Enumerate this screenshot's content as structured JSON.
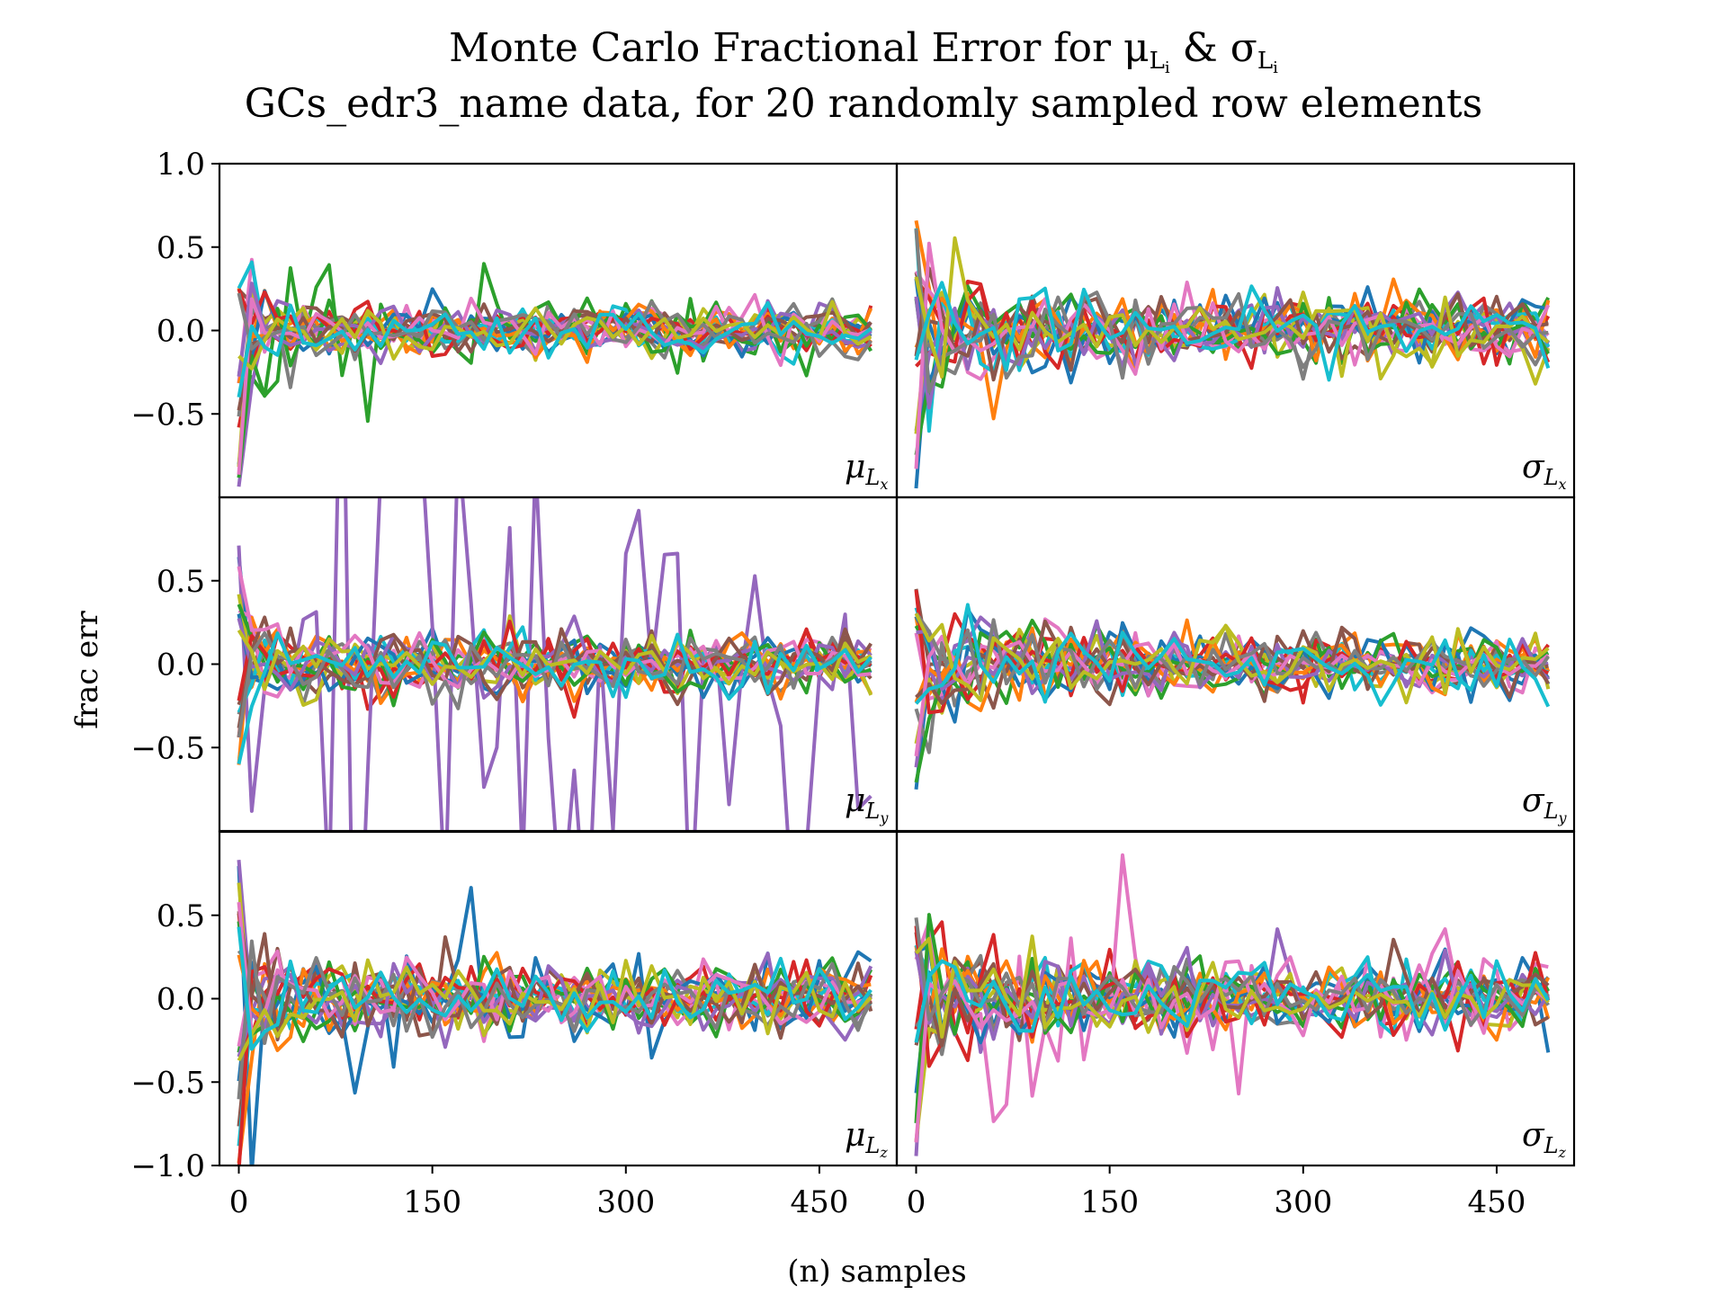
{
  "chart_data": {
    "type": "line",
    "title_line1": "Monte Carlo Fractional Error for μ",
    "title_mu_sub": "L",
    "title_mu_subsub": "i",
    "title_amp": " & σ",
    "title_sigma_sub": "L",
    "title_sigma_subsub": "i",
    "title_line2": "GCs_edr3_name data, for 20 randomly sampled row elements",
    "xlabel": "(n) samples",
    "ylabel": "frac err",
    "xlim": [
      -15,
      510
    ],
    "ylim": [
      -1.0,
      1.0
    ],
    "xticks": [
      "0",
      "150",
      "300",
      "450"
    ],
    "xtick_values": [
      0,
      150,
      300,
      450
    ],
    "yticks_top": [
      "1.0",
      "0.5",
      "0.0",
      "−0.5"
    ],
    "yticks_mid": [
      "0.5",
      "0.0",
      "−0.5"
    ],
    "yticks_bottom": [
      "0.5",
      "0.0",
      "−0.5",
      "−1.0"
    ],
    "ytick_values_top": [
      1.0,
      0.5,
      0.0,
      -0.5
    ],
    "ytick_values_mid": [
      0.5,
      0.0,
      -0.5
    ],
    "ytick_values_bottom": [
      0.5,
      0.0,
      -0.5,
      -1.0
    ],
    "series_colors": [
      "#1f77b4",
      "#ff7f0e",
      "#2ca02c",
      "#d62728",
      "#9467bd",
      "#8c564b",
      "#e377c2",
      "#7f7f7f",
      "#bcbd22",
      "#17becf"
    ],
    "n_series": 20,
    "sample_step": 10,
    "x_max": 490,
    "panels": [
      {
        "name": "mu-lx",
        "label": "μ",
        "sub": "L",
        "subsub": "x",
        "base_amp": 0.06,
        "decay": 0.35,
        "first": [
          -0.9,
          0.25,
          -0.3,
          -0.55
        ],
        "outlier_series": 2,
        "outlier_amp": 0.15
      },
      {
        "name": "sigma-lx",
        "label": "σ",
        "sub": "L",
        "subsub": "x",
        "base_amp": 0.08,
        "decay": 0.6,
        "first": [
          -0.95,
          0.6,
          0.35,
          -0.2
        ],
        "outlier_series": -1,
        "outlier_amp": 0
      },
      {
        "name": "mu-ly",
        "label": "μ",
        "sub": "L",
        "subsub": "y",
        "base_amp": 0.07,
        "decay": 0.4,
        "first": [
          0.7,
          -0.4,
          0.3,
          -0.6
        ],
        "outlier_series": 4,
        "outlier_amp": 1.2
      },
      {
        "name": "sigma-ly",
        "label": "σ",
        "sub": "L",
        "subsub": "y",
        "base_amp": 0.07,
        "decay": 0.6,
        "first": [
          -0.95,
          0.45,
          0.3,
          -0.3
        ],
        "outlier_series": -1,
        "outlier_amp": 0
      },
      {
        "name": "mu-lz",
        "label": "μ",
        "sub": "L",
        "subsub": "z",
        "base_amp": 0.08,
        "decay": 0.5,
        "first": [
          0.9,
          -0.95,
          -0.5,
          0.5
        ],
        "outlier_series": 0,
        "outlier_amp": 0.2
      },
      {
        "name": "sigma-lz",
        "label": "σ",
        "sub": "L",
        "subsub": "z",
        "base_amp": 0.09,
        "decay": 0.6,
        "first": [
          -0.95,
          0.5,
          0.35,
          -0.3
        ],
        "outlier_series": 6,
        "outlier_amp": 0.25
      }
    ]
  }
}
